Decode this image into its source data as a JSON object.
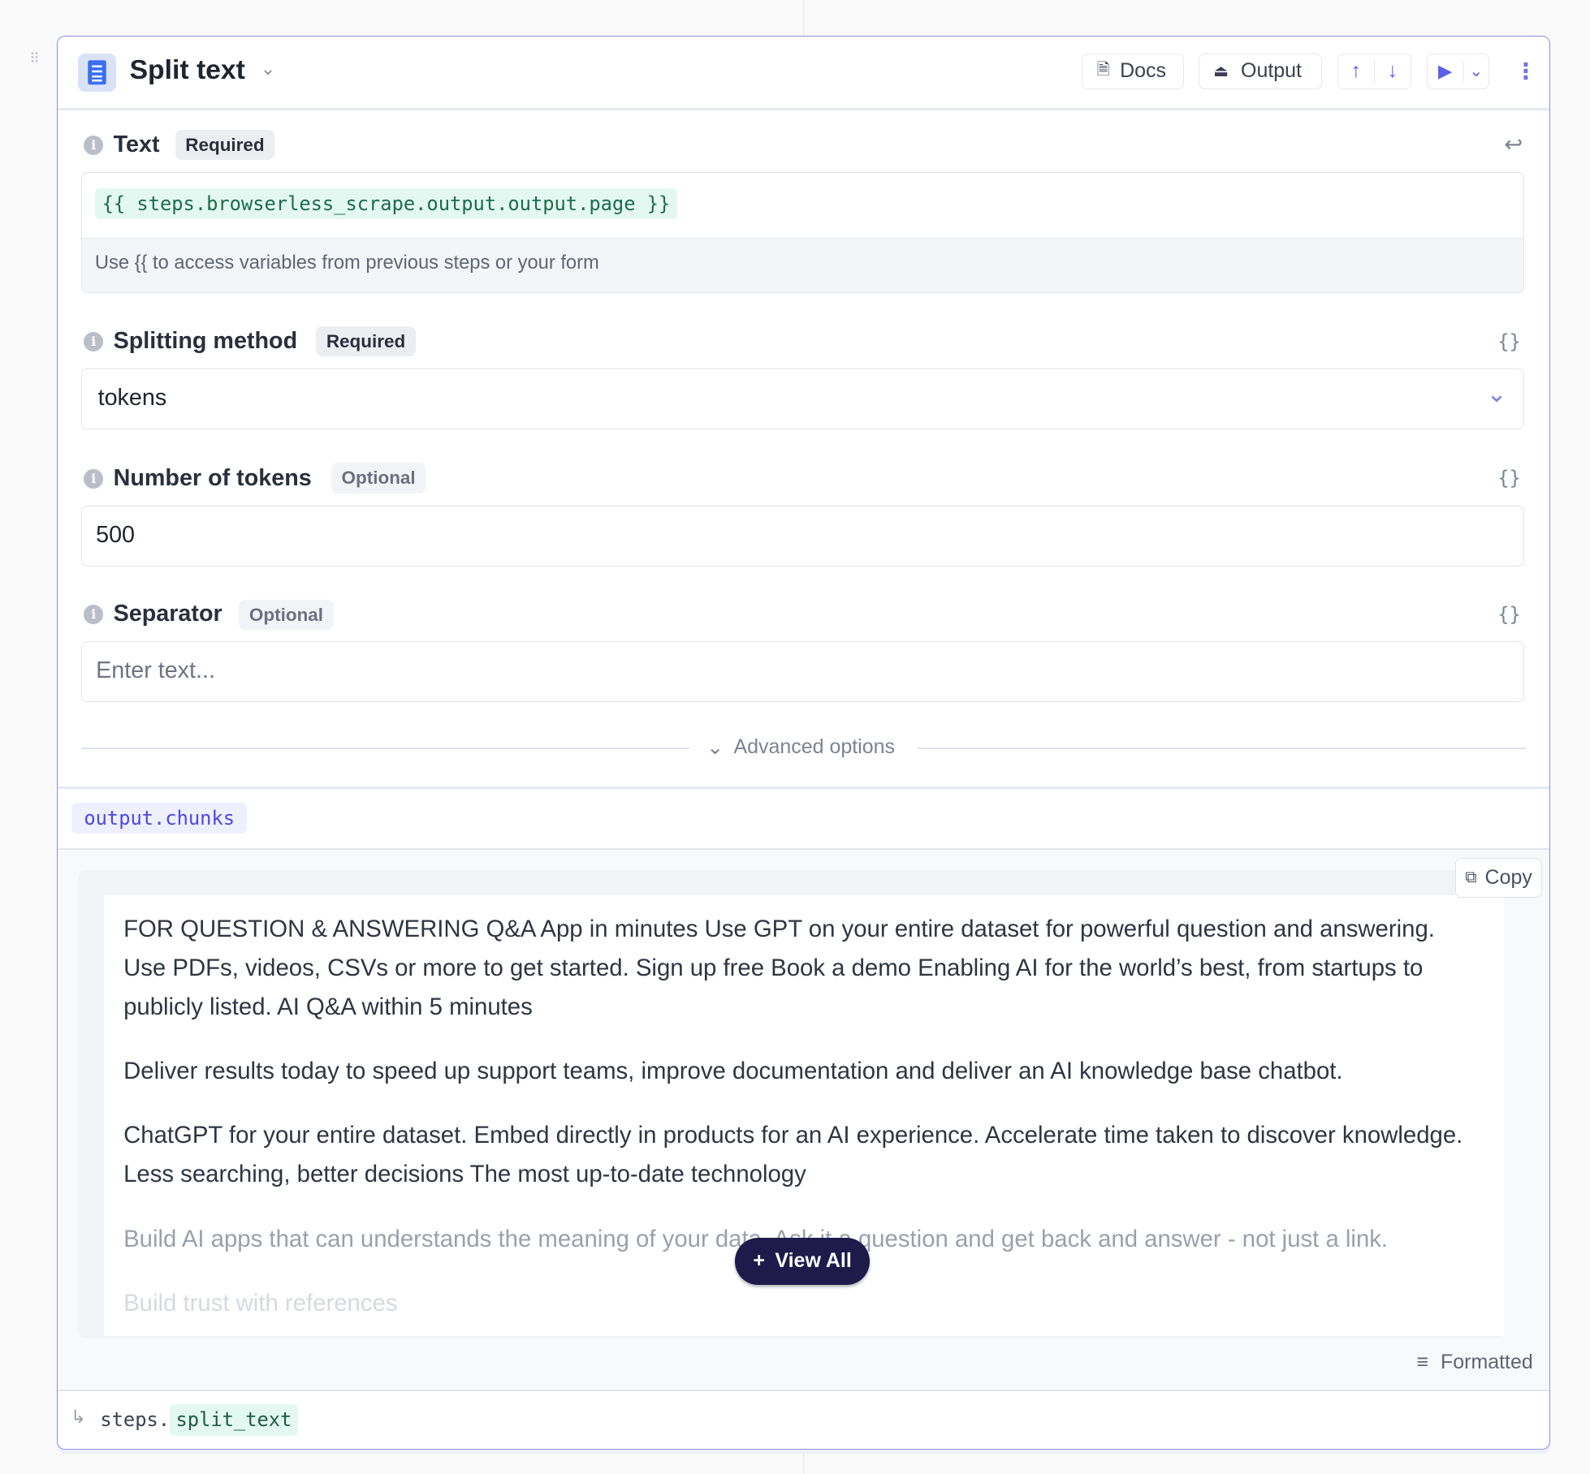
{
  "header": {
    "title": "Split text",
    "docs_label": "Docs",
    "output_label": "Output",
    "icons": [
      "drag-handle-icon",
      "document-icon",
      "chevron-down-icon",
      "docs-icon",
      "output-icon",
      "arrow-up-icon",
      "arrow-down-icon",
      "play-icon",
      "kebab-icon"
    ]
  },
  "fields": {
    "text": {
      "label": "Text",
      "badge": "Required",
      "value": "{{ steps.browserless_scrape.output.output.page }}",
      "hint": "Use {{ to access variables from previous steps or your form"
    },
    "method": {
      "label": "Splitting method",
      "badge": "Required",
      "value": "tokens"
    },
    "tokens": {
      "label": "Number of tokens",
      "badge": "Optional",
      "value": "500"
    },
    "separator": {
      "label": "Separator",
      "badge": "Optional",
      "placeholder": "Enter text..."
    }
  },
  "advanced_label": "Advanced options",
  "output": {
    "path": "output.chunks",
    "copy_label": "Copy",
    "paragraphs": [
      "FOR QUESTION & ANSWERING Q&A App in minutes Use GPT on your entire dataset for powerful question and answering. Use PDFs, videos, CSVs or more to get started. Sign up free   Book a demo Enabling AI for the world’s best, from startups to publicly listed. AI Q&A within 5 minutes",
      "Deliver results today to speed up support teams, improve documentation and deliver an AI knowledge base chatbot.",
      "ChatGPT for your entire dataset. Embed directly in products for an AI experience. Accelerate time taken to discover knowledge. Less searching, better decisions The most up-to-date technology",
      "Build AI apps that can understands the meaning of your data. Ask it a question and get back and answer - not just a link.",
      "Build trust with references"
    ],
    "view_all_label": "View All",
    "formatted_label": "Formatted"
  },
  "footer": {
    "prefix": "steps.",
    "step_name": "split_text"
  },
  "colors": {
    "accent": "#8b90ef",
    "code_green_bg": "#e3f8f1",
    "chip_purple": "#4f46e5",
    "view_all_bg": "#1e1b4b"
  }
}
